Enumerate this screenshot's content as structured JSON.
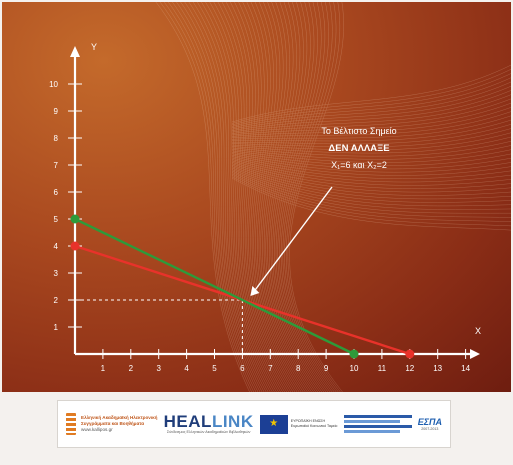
{
  "chart_data": {
    "type": "line",
    "title": "",
    "xlabel": "X",
    "ylabel": "Y",
    "xlim": [
      0,
      14
    ],
    "ylim": [
      0,
      10
    ],
    "x_ticks": [
      1,
      2,
      3,
      4,
      5,
      6,
      7,
      8,
      9,
      10,
      11,
      12,
      13,
      14
    ],
    "y_ticks": [
      1,
      2,
      3,
      4,
      5,
      6,
      7,
      8,
      9,
      10
    ],
    "series": [
      {
        "color": "#e8322a",
        "points": [
          [
            0,
            4
          ],
          [
            12,
            0
          ]
        ],
        "endpoints": [
          [
            0,
            4
          ],
          [
            12,
            0
          ]
        ]
      },
      {
        "color": "#2e9a3a",
        "points": [
          [
            0,
            5
          ],
          [
            10,
            0
          ]
        ],
        "endpoints": [
          [
            0,
            5
          ],
          [
            10,
            0
          ]
        ]
      }
    ],
    "optimal_point": [
      6,
      2
    ],
    "annotation": {
      "lines": [
        "Το Βέλτιστο Σημείο",
        "ΔΕΝ ΑΛΛΑΞΕ",
        "X₁=6 και X₂=2"
      ],
      "points_to": [
        6,
        2
      ]
    },
    "grid": false
  },
  "colors": {
    "background_dark": "#7a2412",
    "background_light": "#c46a2b",
    "axis": "#ffffff",
    "line_red": "#e8322a",
    "line_green": "#2e9a3a"
  },
  "footer": {
    "logo1": {
      "lines": [
        "Ελληνική Ακαδημαϊκή Ηλεκτρονική",
        "Συγγράμματα και Βοηθήματα",
        "www.kallipos.gr"
      ],
      "icon": "book-stack-icon"
    },
    "healink": {
      "word_a": "HEAL",
      "word_b": "LINK",
      "tag": "Σύνδεσμος Ελληνικών Ακαδημαϊκών Βιβλιοθηκών"
    },
    "eu": {
      "icon": "eu-flag-icon",
      "lines": [
        "ΕΥΡΩΠΑΪΚΗ ΕΝΩΣΗ",
        "Ευρωπαϊκό Κοινωνικό Ταμείο"
      ]
    },
    "espa": {
      "word": "ΕΣΠΑ",
      "sub": "2007-2013"
    }
  }
}
